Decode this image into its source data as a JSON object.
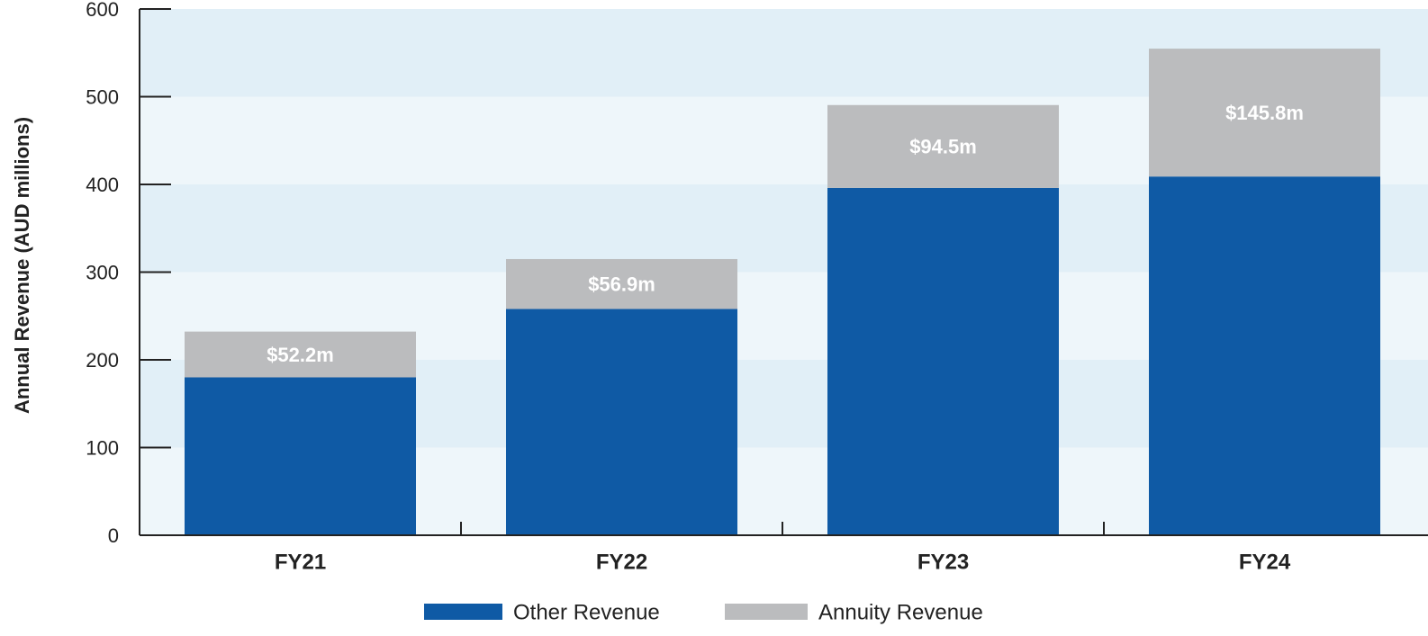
{
  "chart_data": {
    "type": "stacked_bar",
    "y_axis_label": "Annual Revenue (AUD millions)",
    "categories": [
      "FY21",
      "FY22",
      "FY23",
      "FY24"
    ],
    "series": [
      {
        "name": "Other Revenue",
        "color": "#0f5aa5",
        "values": [
          180,
          258,
          396,
          409
        ]
      },
      {
        "name": "Annuity Revenue",
        "color": "#bbbcbe",
        "values": [
          52.2,
          56.9,
          94.5,
          145.8
        ],
        "value_labels": [
          "$52.2m",
          "$56.9m",
          "$94.5m",
          "$145.8m"
        ]
      }
    ],
    "ylim": [
      0,
      600
    ],
    "yticks": [
      0,
      100,
      200,
      300,
      400,
      500,
      600
    ],
    "band_colors": [
      "#eef6fa",
      "#e1eff7"
    ]
  }
}
